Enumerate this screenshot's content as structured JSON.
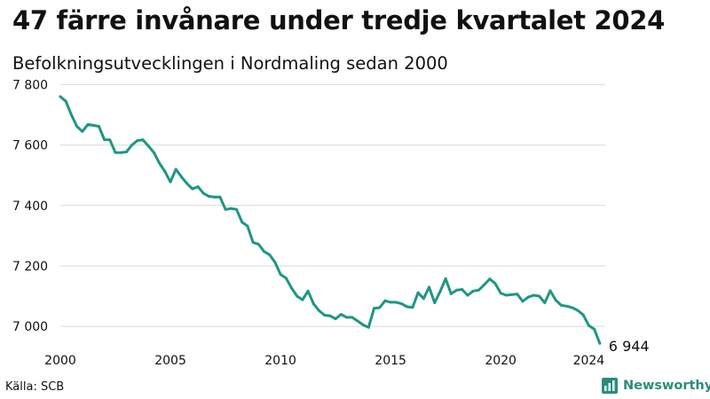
{
  "title": "47 färre invånare under tredje kvartalet 2024",
  "subtitle": "Befolkningsutvecklingen i Nordmaling sedan 2000",
  "source": "Källa: SCB",
  "brand": "Newsworthy",
  "colors": {
    "line": "#1f9683",
    "grid": "#d9d9d9",
    "brand": "#2a8c7c"
  },
  "chart_data": {
    "type": "line",
    "title": "47 färre invånare under tredje kvartalet 2024",
    "subtitle": "Befolkningsutvecklingen i Nordmaling sedan 2000",
    "xlim": [
      2000,
      2024.75
    ],
    "ylim": [
      6930,
      7810
    ],
    "x_ticks": [
      2000,
      2005,
      2010,
      2015,
      2020,
      2024
    ],
    "x_tick_labels": [
      "2000",
      "2005",
      "2010",
      "2015",
      "2020",
      "2024"
    ],
    "y_ticks": [
      7000,
      7200,
      7400,
      7600,
      7800
    ],
    "y_tick_labels": [
      "7 000",
      "7 200",
      "7 400",
      "7 600",
      "7 800"
    ],
    "grid": true,
    "end_label": "6 944",
    "series": [
      {
        "x": [
          2000,
          2000.25,
          2000.5,
          2000.75,
          2001,
          2001.25,
          2001.5,
          2001.75,
          2002,
          2002.25,
          2002.5,
          2002.75,
          2003,
          2003.25,
          2003.5,
          2003.75,
          2004,
          2004.25,
          2004.5,
          2004.75,
          2005,
          2005.25,
          2005.5,
          2005.75,
          2006,
          2006.25,
          2006.5,
          2006.75,
          2007,
          2007.25,
          2007.5,
          2007.75,
          2008,
          2008.25,
          2008.5,
          2008.75,
          2009,
          2009.25,
          2009.5,
          2009.75,
          2010,
          2010.25,
          2010.5,
          2010.75,
          2011,
          2011.25,
          2011.5,
          2011.75,
          2012,
          2012.25,
          2012.5,
          2012.75,
          2013,
          2013.25,
          2013.5,
          2013.75,
          2014,
          2014.25,
          2014.5,
          2014.75,
          2015,
          2015.25,
          2015.5,
          2015.75,
          2016,
          2016.25,
          2016.5,
          2016.75,
          2017,
          2017.25,
          2017.5,
          2017.75,
          2018,
          2018.25,
          2018.5,
          2018.75,
          2019,
          2019.25,
          2019.5,
          2019.75,
          2020,
          2020.25,
          2020.5,
          2020.75,
          2021,
          2021.25,
          2021.5,
          2021.75,
          2022,
          2022.25,
          2022.5,
          2022.75,
          2023,
          2023.25,
          2023.5,
          2023.75,
          2024,
          2024.25,
          2024.5
        ],
        "y": [
          7760,
          7745,
          7700,
          7662,
          7645,
          7668,
          7665,
          7662,
          7618,
          7617,
          7575,
          7575,
          7577,
          7600,
          7615,
          7617,
          7597,
          7575,
          7540,
          7513,
          7478,
          7520,
          7495,
          7473,
          7455,
          7462,
          7440,
          7430,
          7428,
          7428,
          7387,
          7390,
          7387,
          7345,
          7332,
          7278,
          7272,
          7248,
          7237,
          7212,
          7172,
          7160,
          7127,
          7100,
          7088,
          7117,
          7075,
          7052,
          7037,
          7035,
          7025,
          7040,
          7030,
          7030,
          7018,
          7005,
          6997,
          7060,
          7062,
          7085,
          7080,
          7080,
          7075,
          7065,
          7063,
          7112,
          7092,
          7130,
          7078,
          7115,
          7158,
          7108,
          7120,
          7122,
          7103,
          7117,
          7120,
          7138,
          7157,
          7142,
          7110,
          7103,
          7105,
          7107,
          7083,
          7097,
          7103,
          7100,
          7078,
          7118,
          7087,
          7070,
          7067,
          7062,
          7053,
          7038,
          7003,
          6991,
          6944
        ]
      }
    ]
  }
}
